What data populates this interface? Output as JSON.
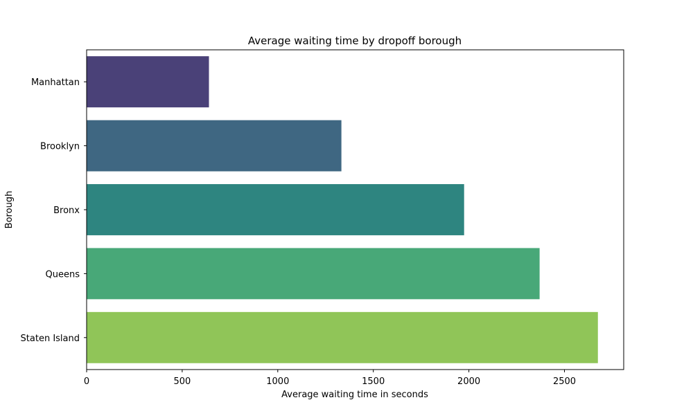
{
  "chart_data": {
    "type": "bar",
    "orientation": "horizontal",
    "title": "Average waiting time by dropoff borough",
    "xlabel": "Average waiting time in seconds",
    "ylabel": "Borough",
    "categories": [
      "Manhattan",
      "Brooklyn",
      "Bronx",
      "Queens",
      "Staten Island"
    ],
    "values": [
      640,
      1333,
      1975,
      2370,
      2675
    ],
    "colors": [
      "#4a4178",
      "#3f6782",
      "#2e8580",
      "#48a878",
      "#90c558"
    ],
    "xlim": [
      0,
      2810
    ],
    "xticks": [
      0,
      500,
      1000,
      1500,
      2000,
      2500
    ],
    "grid": false,
    "legend": "none"
  }
}
